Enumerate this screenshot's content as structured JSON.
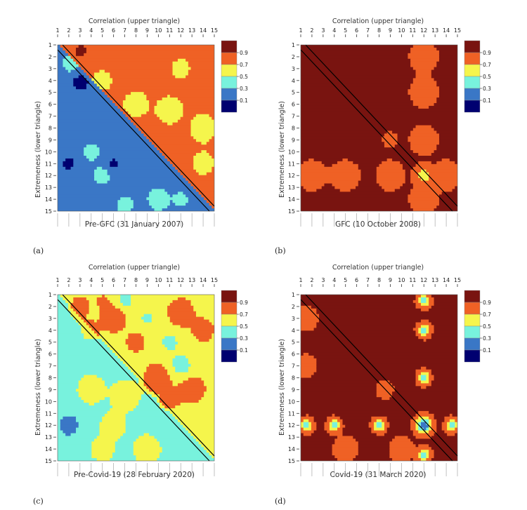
{
  "chart_data": [
    {
      "type": "heatmap",
      "panel_label": "(a)",
      "title": "Pre-GFC (31 January 2007)",
      "xlabel": "Correlation (upper triangle)",
      "ylabel": "Extremeness (lower triangle)",
      "ticks": [
        "1",
        "2",
        "3",
        "4",
        "5",
        "6",
        "7",
        "8",
        "9",
        "10",
        "11",
        "12",
        "13",
        "14",
        "15"
      ],
      "colorbar_labels": [
        "0.9",
        "0.7",
        "0.5",
        "0.3",
        "0.1"
      ],
      "upper_base": 0.8,
      "lower_base": 0.25,
      "blobs": [
        {
          "x": 3,
          "y": 4.2,
          "v": -0.3,
          "s": 0.5
        },
        {
          "x": 2.2,
          "y": 2.6,
          "v": 0.1,
          "s": 0.6
        },
        {
          "x": 3.2,
          "y": 1.5,
          "v": 0.15,
          "s": 0.5
        },
        {
          "x": 5,
          "y": 4,
          "v": -0.2,
          "s": 0.7
        },
        {
          "x": 4,
          "y": 2.2,
          "v": -0.1,
          "s": 0.5
        },
        {
          "x": 11,
          "y": 6.5,
          "v": -0.3,
          "s": 0.8
        },
        {
          "x": 8,
          "y": 6,
          "v": -0.25,
          "s": 0.8
        },
        {
          "x": 14,
          "y": 8,
          "v": -0.3,
          "s": 0.8
        },
        {
          "x": 14,
          "y": 11,
          "v": -0.2,
          "s": 0.8
        },
        {
          "x": 12,
          "y": 3,
          "v": -0.25,
          "s": 0.6
        },
        {
          "x": 4,
          "y": 10,
          "v": 0.1,
          "s": 0.6
        },
        {
          "x": 5,
          "y": 12,
          "v": 0.15,
          "s": 0.5
        },
        {
          "x": 10,
          "y": 14,
          "v": 0.18,
          "s": 0.6
        },
        {
          "x": 7,
          "y": 14.5,
          "v": 0.15,
          "s": 0.5
        },
        {
          "x": 2,
          "y": 11,
          "v": -0.2,
          "s": 0.6
        },
        {
          "x": 6,
          "y": 11,
          "v": -0.2,
          "s": 0.5
        },
        {
          "x": 1,
          "y": 14,
          "v": 0.05,
          "s": 0.5
        },
        {
          "x": 12,
          "y": 14,
          "v": 0.1,
          "s": 0.5
        }
      ]
    },
    {
      "type": "heatmap",
      "panel_label": "(b)",
      "title": "GFC (10 October 2008)",
      "xlabel": "Correlation (upper triangle)",
      "ylabel": "Extremeness (lower triangle)",
      "ticks": [
        "1",
        "2",
        "3",
        "4",
        "5",
        "6",
        "7",
        "8",
        "9",
        "10",
        "11",
        "12",
        "13",
        "14",
        "15"
      ],
      "colorbar_labels": [
        "0.9",
        "0.7",
        "0.5",
        "0.3",
        "0.1"
      ],
      "upper_base": 0.93,
      "lower_base": 0.93,
      "blobs": [
        {
          "x": 12,
          "y": 12,
          "v": -0.35,
          "s": 0.5
        },
        {
          "x": 9,
          "y": 9,
          "v": -0.2,
          "s": 0.35
        },
        {
          "x": 5,
          "y": 12,
          "v": -0.12,
          "s": 0.8
        },
        {
          "x": 9,
          "y": 12,
          "v": -0.12,
          "s": 0.8
        },
        {
          "x": 2,
          "y": 12,
          "v": -0.12,
          "s": 0.8
        },
        {
          "x": 14,
          "y": 12,
          "v": -0.12,
          "s": 0.8
        },
        {
          "x": 12,
          "y": 5,
          "v": -0.12,
          "s": 0.8
        },
        {
          "x": 12,
          "y": 9,
          "v": -0.12,
          "s": 0.8
        },
        {
          "x": 12,
          "y": 2,
          "v": -0.12,
          "s": 0.8
        },
        {
          "x": 12,
          "y": 14,
          "v": -0.12,
          "s": 0.8
        }
      ]
    },
    {
      "type": "heatmap",
      "panel_label": "(c)",
      "title": "Pre-Covid-19 (28 February 2020)",
      "xlabel": "Correlation (upper triangle)",
      "ylabel": "Extremeness (lower triangle)",
      "ticks": [
        "1",
        "2",
        "3",
        "4",
        "5",
        "6",
        "7",
        "8",
        "9",
        "10",
        "11",
        "12",
        "13",
        "14",
        "15"
      ],
      "colorbar_labels": [
        "0.9",
        "0.7",
        "0.5",
        "0.3",
        "0.1"
      ],
      "upper_base": 0.62,
      "lower_base": 0.45,
      "blobs": [
        {
          "x": 3,
          "y": 2,
          "v": 0.2,
          "s": 0.6
        },
        {
          "x": 6,
          "y": 3,
          "v": 0.25,
          "s": 0.8
        },
        {
          "x": 9,
          "y": 3,
          "v": -0.15,
          "s": 0.7
        },
        {
          "x": 12,
          "y": 2.5,
          "v": 0.25,
          "s": 0.8
        },
        {
          "x": 14,
          "y": 4,
          "v": 0.2,
          "s": 0.7
        },
        {
          "x": 8,
          "y": 5,
          "v": 0.2,
          "s": 0.6
        },
        {
          "x": 11,
          "y": 5,
          "v": -0.2,
          "s": 0.6
        },
        {
          "x": 10,
          "y": 8,
          "v": 0.22,
          "s": 0.9
        },
        {
          "x": 13,
          "y": 9,
          "v": 0.25,
          "s": 0.8
        },
        {
          "x": 12,
          "y": 7,
          "v": -0.25,
          "s": 0.7
        },
        {
          "x": 7,
          "y": 1.5,
          "v": -0.2,
          "s": 0.6
        },
        {
          "x": 4,
          "y": 4,
          "v": 0.2,
          "s": 0.5
        },
        {
          "x": 5,
          "y": 1.5,
          "v": 0.1,
          "s": 0.5
        },
        {
          "x": 11,
          "y": 10,
          "v": 0.15,
          "s": 0.6
        },
        {
          "x": 7,
          "y": 9.5,
          "v": 0.2,
          "s": 0.8
        },
        {
          "x": 4,
          "y": 9,
          "v": 0.25,
          "s": 0.7
        },
        {
          "x": 2,
          "y": 7,
          "v": 0.0,
          "s": 0.7
        },
        {
          "x": 6,
          "y": 12,
          "v": 0.2,
          "s": 0.7
        },
        {
          "x": 2,
          "y": 12,
          "v": -0.25,
          "s": 0.8
        },
        {
          "x": 5,
          "y": 14,
          "v": 0.25,
          "s": 0.6
        },
        {
          "x": 9,
          "y": 14,
          "v": 0.25,
          "s": 0.7
        },
        {
          "x": 11,
          "y": 12,
          "v": -0.15,
          "s": 0.6
        },
        {
          "x": 3,
          "y": 3,
          "v": 0.05,
          "s": 0.5
        }
      ]
    },
    {
      "type": "heatmap",
      "panel_label": "(d)",
      "title": "Covid-19 (31 March 2020)",
      "xlabel": "Correlation (upper triangle)",
      "ylabel": "Extremeness (lower triangle)",
      "ticks": [
        "1",
        "2",
        "3",
        "4",
        "5",
        "6",
        "7",
        "8",
        "9",
        "10",
        "11",
        "12",
        "13",
        "14",
        "15"
      ],
      "colorbar_labels": [
        "0.9",
        "0.7",
        "0.5",
        "0.3",
        "0.1"
      ],
      "upper_base": 0.93,
      "lower_base": 0.93,
      "blobs": [
        {
          "x": 12,
          "y": 12,
          "v": -0.85,
          "s": 0.45
        },
        {
          "x": 12,
          "y": 4,
          "v": -0.6,
          "s": 0.35
        },
        {
          "x": 12,
          "y": 8,
          "v": -0.6,
          "s": 0.35
        },
        {
          "x": 12,
          "y": 1.5,
          "v": -0.6,
          "s": 0.35
        },
        {
          "x": 4,
          "y": 12,
          "v": -0.6,
          "s": 0.35
        },
        {
          "x": 8,
          "y": 12,
          "v": -0.6,
          "s": 0.35
        },
        {
          "x": 1.5,
          "y": 12,
          "v": -0.6,
          "s": 0.35
        },
        {
          "x": 14.5,
          "y": 12,
          "v": -0.6,
          "s": 0.35
        },
        {
          "x": 12,
          "y": 14.5,
          "v": -0.6,
          "s": 0.35
        },
        {
          "x": 1.5,
          "y": 3,
          "v": -0.15,
          "s": 0.6
        },
        {
          "x": 1.5,
          "y": 7,
          "v": -0.12,
          "s": 0.6
        },
        {
          "x": 8.5,
          "y": 9,
          "v": -0.12,
          "s": 0.5
        },
        {
          "x": 5,
          "y": 14,
          "v": -0.12,
          "s": 0.7
        },
        {
          "x": 10,
          "y": 14,
          "v": -0.12,
          "s": 0.7
        }
      ]
    }
  ]
}
